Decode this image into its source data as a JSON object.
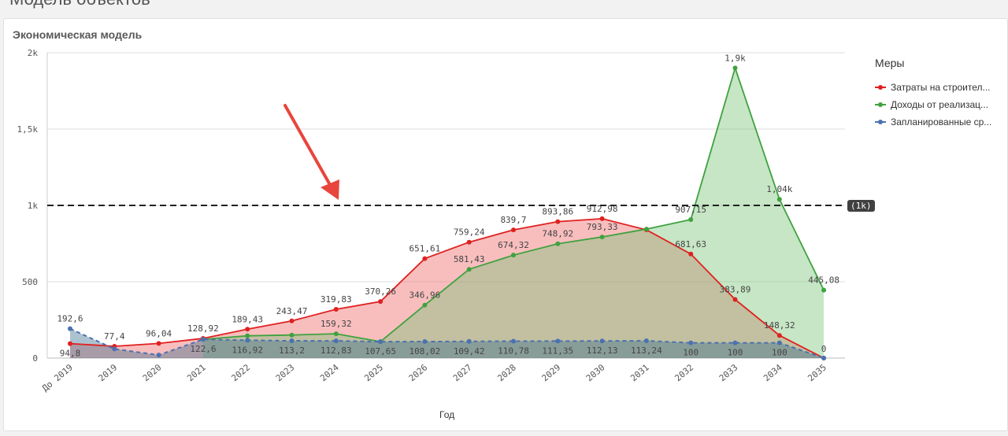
{
  "page": {
    "heading": "Модель объектов"
  },
  "card": {
    "title": "Экономическая модель"
  },
  "legend": {
    "title": "Меры",
    "items": [
      {
        "label": "Затраты на строител...",
        "color": "#e02020"
      },
      {
        "label": "Доходы от реализац...",
        "color": "#3fa23f"
      },
      {
        "label": "Запланированные ср...",
        "color": "#4a72b0"
      }
    ]
  },
  "reference_line": {
    "label": "(1k)",
    "value": 1000
  },
  "chart_data": {
    "type": "area",
    "xlabel": "Год",
    "ylabel": "",
    "ylim": [
      0,
      2000
    ],
    "yticks": [
      {
        "value": 0,
        "label": "0"
      },
      {
        "value": 500,
        "label": "500"
      },
      {
        "value": 1000,
        "label": "1k"
      },
      {
        "value": 1500,
        "label": "1,5k"
      },
      {
        "value": 2000,
        "label": "2k"
      }
    ],
    "categories": [
      "До 2019",
      "2019",
      "2020",
      "2021",
      "2022",
      "2023",
      "2024",
      "2025",
      "2026",
      "2027",
      "2028",
      "2029",
      "2030",
      "2031",
      "2032",
      "2033",
      "2034",
      "2035"
    ],
    "series": [
      {
        "name": "Затраты на строител...",
        "color": "#e02020",
        "fill": "rgba(240,110,110,0.45)",
        "dashed": false,
        "values": [
          94.8,
          77.4,
          96.04,
          128.92,
          189.43,
          243.47,
          319.83,
          370.26,
          651.61,
          759.24,
          839.7,
          893.86,
          912.98,
          840,
          681.63,
          383.89,
          148.32,
          0
        ],
        "labels": [
          "94,8",
          "77,4",
          "96,04",
          "128,92",
          "189,43",
          "243,47",
          "319,83",
          "370,26",
          "651,61",
          "759,24",
          "839,7",
          "893,86",
          "912,98",
          "",
          "681,63",
          "383,89",
          "148,32",
          "0"
        ]
      },
      {
        "name": "Доходы от реализац...",
        "color": "#3fa23f",
        "fill": "rgba(120,195,120,0.42)",
        "dashed": false,
        "values": [
          null,
          null,
          null,
          122.6,
          146,
          151,
          159.32,
          107.65,
          346.96,
          581.43,
          674.32,
          748.92,
          793.33,
          845,
          907.15,
          1900,
          1040,
          445.08
        ],
        "labels": [
          "",
          "",
          "",
          "122,6",
          "",
          "",
          "159,32",
          "107,65",
          "346,96",
          "581,43",
          "674,32",
          "748,92",
          "793,33",
          "",
          "907,15",
          "1,9k",
          "1,04k",
          "445,08"
        ]
      },
      {
        "name": "Запланированные ср...",
        "color": "#4a72b0",
        "fill": "rgba(60,110,140,0.42)",
        "dashed": true,
        "values": [
          192.6,
          60,
          20,
          122.6,
          116.92,
          113.2,
          112.83,
          107.65,
          108.02,
          109.42,
          110.78,
          111.35,
          112.13,
          113.24,
          100,
          100,
          100,
          0
        ],
        "labels": [
          "192,6",
          "",
          "",
          "",
          "116,92",
          "113,2",
          "112,83",
          "",
          "108,02",
          "109,42",
          "110,78",
          "111,35",
          "112,13",
          "113,24",
          "100",
          "100",
          "100",
          ""
        ]
      }
    ]
  }
}
